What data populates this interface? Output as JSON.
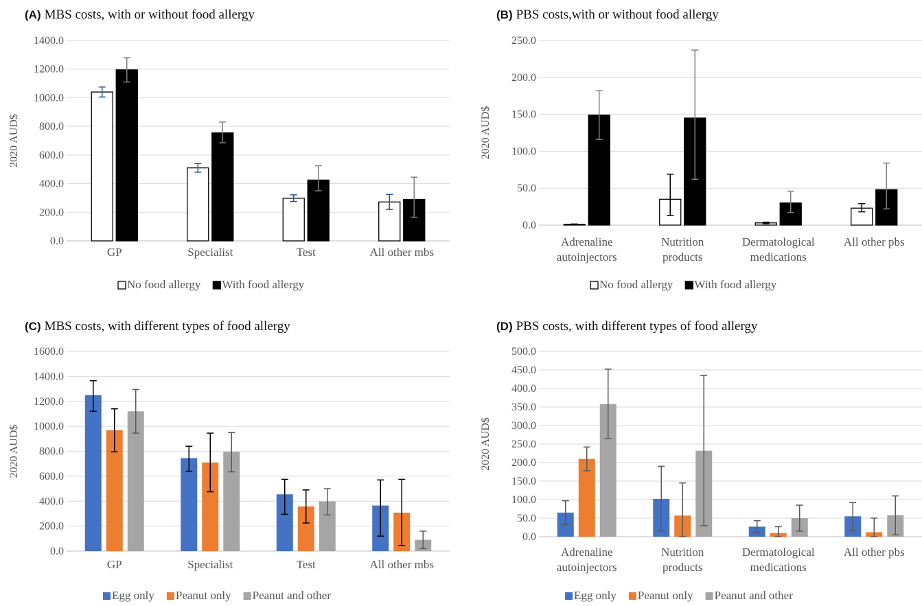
{
  "chart_data": [
    {
      "type": "bar",
      "panel": "(A)",
      "title": "MBS costs, with or without food allergy",
      "ylabel": "2020 AUD$",
      "ylim": [
        0,
        1400
      ],
      "ytick_step": 200,
      "ytick_labels": [
        "0.0",
        "200.0",
        "400.0",
        "600.0",
        "800.0",
        "1000.0",
        "1200.0",
        "1400.0"
      ],
      "categories": [
        [
          "GP"
        ],
        [
          "Specialist"
        ],
        [
          "Test"
        ],
        [
          "All other mbs"
        ]
      ],
      "grid": true,
      "legend_position": "bottom",
      "series": [
        {
          "name": "No food allergy",
          "color": "#ffffff",
          "stroke": "#000000",
          "err_color": "#2f5597",
          "values": [
            1040,
            510,
            298,
            272
          ],
          "err_low": [
            1005,
            480,
            275,
            220
          ],
          "err_high": [
            1075,
            540,
            322,
            325
          ]
        },
        {
          "name": "With food allergy",
          "color": "#000000",
          "stroke": "#000000",
          "err_color": "#7f7f7f",
          "values": [
            1195,
            755,
            425,
            290
          ],
          "err_low": [
            1110,
            685,
            350,
            165
          ],
          "err_high": [
            1280,
            830,
            525,
            445
          ]
        }
      ]
    },
    {
      "type": "bar",
      "panel": "(B)",
      "title": "PBS costs,with or without food allergy",
      "ylabel": "2020 AUD$",
      "ylim": [
        0,
        250
      ],
      "ytick_step": 50,
      "ytick_labels": [
        "0.0",
        "50.0",
        "100.0",
        "150.0",
        "200.0",
        "250.0"
      ],
      "categories": [
        [
          "Adrenaline",
          "autoinjectors"
        ],
        [
          "Nutrition",
          "products"
        ],
        [
          "Dermatological",
          "medications"
        ],
        [
          "All other pbs"
        ]
      ],
      "grid": true,
      "legend_position": "bottom",
      "series": [
        {
          "name": "No food allergy",
          "color": "#ffffff",
          "stroke": "#000000",
          "err_color": "#000000",
          "values": [
            1,
            35,
            3,
            23
          ],
          "err_low": [
            0.5,
            13,
            2,
            18
          ],
          "err_high": [
            1.5,
            69,
            4,
            29
          ]
        },
        {
          "name": "With food allergy",
          "color": "#000000",
          "stroke": "#000000",
          "err_color": "#7f7f7f",
          "values": [
            149,
            145,
            30,
            48
          ],
          "err_low": [
            116,
            62,
            17,
            22
          ],
          "err_high": [
            182,
            237,
            46,
            84
          ]
        }
      ]
    },
    {
      "type": "bar",
      "panel": "(C)",
      "title": "MBS costs, with different types of food allergy",
      "ylabel": "2020 AUD$",
      "ylim": [
        0,
        1600
      ],
      "ytick_step": 200,
      "ytick_labels": [
        "0.0",
        "200.0",
        "400.0",
        "600.0",
        "800.0",
        "1000.0",
        "1200.0",
        "1400.0",
        "1600.0"
      ],
      "categories": [
        [
          "GP"
        ],
        [
          "Specialist"
        ],
        [
          "Test"
        ],
        [
          "All other mbs"
        ]
      ],
      "grid": true,
      "legend_position": "bottom",
      "series": [
        {
          "name": "Egg only",
          "color": "#4472c4",
          "stroke": "none",
          "err_color": "#000000",
          "values": [
            1250,
            745,
            455,
            365
          ],
          "err_low": [
            1120,
            640,
            295,
            120
          ],
          "err_high": [
            1365,
            840,
            575,
            570
          ]
        },
        {
          "name": "Peanut only",
          "color": "#ed7d31",
          "stroke": "none",
          "err_color": "#000000",
          "values": [
            968,
            710,
            358,
            308
          ],
          "err_low": [
            795,
            475,
            225,
            45
          ],
          "err_high": [
            1140,
            945,
            490,
            575
          ]
        },
        {
          "name": "Peanut and other",
          "color": "#a5a5a5",
          "stroke": "none",
          "err_color": "#595959",
          "values": [
            1120,
            795,
            398,
            90
          ],
          "err_low": [
            945,
            635,
            290,
            20
          ],
          "err_high": [
            1295,
            950,
            500,
            160
          ]
        }
      ]
    },
    {
      "type": "bar",
      "panel": "(D)",
      "title": "PBS costs, with different types of food allergy",
      "ylabel": "2020 AUD$",
      "ylim": [
        0,
        500
      ],
      "ytick_step": 50,
      "ytick_labels": [
        "0.0",
        "50.0",
        "100.0",
        "150.0",
        "200.0",
        "250.0",
        "300.0",
        "350.0",
        "400.0",
        "450.0",
        "500.0"
      ],
      "categories": [
        [
          "Adrenaline",
          "autoinjectors"
        ],
        [
          "Nutrition",
          "products"
        ],
        [
          "Dermatological",
          "medications"
        ],
        [
          "All other pbs"
        ]
      ],
      "grid": true,
      "legend_position": "bottom",
      "series": [
        {
          "name": "Egg only",
          "color": "#4472c4",
          "stroke": "none",
          "err_color": "#595959",
          "values": [
            65,
            102,
            27,
            55
          ],
          "err_low": [
            33,
            15,
            12,
            17
          ],
          "err_high": [
            97,
            190,
            43,
            92
          ]
        },
        {
          "name": "Peanut only",
          "color": "#ed7d31",
          "stroke": "none",
          "err_color": "#595959",
          "values": [
            210,
            57,
            10,
            12
          ],
          "err_low": [
            178,
            0,
            0,
            0
          ],
          "err_high": [
            242,
            145,
            27,
            50
          ]
        },
        {
          "name": "Peanut and other",
          "color": "#a5a5a5",
          "stroke": "none",
          "err_color": "#595959",
          "values": [
            358,
            232,
            50,
            58
          ],
          "err_low": [
            265,
            30,
            15,
            5
          ],
          "err_high": [
            452,
            435,
            85,
            110
          ]
        }
      ]
    }
  ]
}
